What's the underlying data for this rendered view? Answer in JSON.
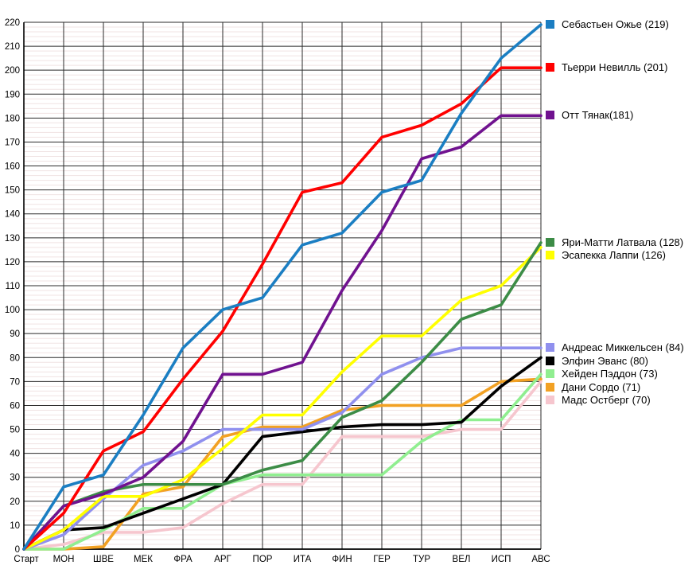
{
  "chart_data": {
    "type": "line",
    "title": "",
    "xlabel": "",
    "ylabel": "",
    "x_labels": [
      "Старт",
      "МОН",
      "ШВЕ",
      "МЕК",
      "ФРА",
      "АРГ",
      "ПОР",
      "ИТА",
      "ФИН",
      "ГЕР",
      "ТУР",
      "ВЕЛ",
      "ИСП",
      "АВС"
    ],
    "ylim": [
      0,
      220
    ],
    "ytick_step": 10,
    "minor_grid_step": 2,
    "grid": "on",
    "legend_position": "right-aligned-to-line-ends",
    "series": [
      {
        "name": "Себастьен Ожье (219)",
        "color": "#1B7EC2",
        "values": [
          0,
          26,
          31,
          56,
          84,
          100,
          105,
          127,
          132,
          149,
          154,
          182,
          205,
          219
        ]
      },
      {
        "name": "Тьерри Невилль (201)",
        "color": "#FF0000",
        "values": [
          0,
          15,
          41,
          49,
          71,
          91,
          119,
          149,
          153,
          172,
          177,
          186,
          201,
          201
        ]
      },
      {
        "name": "Отт Тянак(181)",
        "color": "#70128F",
        "values": [
          0,
          18,
          23,
          30,
          45,
          73,
          73,
          78,
          108,
          133,
          163,
          168,
          181,
          181
        ]
      },
      {
        "name": "Яри-Матти Латвала (128)",
        "color": "#3C8C46",
        "values": [
          0,
          18,
          24,
          27,
          27,
          27,
          33,
          37,
          55,
          62,
          78,
          96,
          102,
          128
        ]
      },
      {
        "name": "Эсапекка Лаппи (126)",
        "color": "#FFFF00",
        "values": [
          0,
          8,
          22,
          22,
          29,
          42,
          56,
          56,
          74,
          89,
          89,
          104,
          110,
          126
        ]
      },
      {
        "name": "Андреас Миккельсен (84)",
        "color": "#9090EE",
        "values": [
          0,
          6,
          21,
          35,
          41,
          50,
          50,
          50,
          57,
          73,
          80,
          84,
          84,
          84
        ]
      },
      {
        "name": "Элфин Эванс (80)",
        "color": "#000000",
        "values": [
          0,
          8,
          9,
          15,
          21,
          27,
          47,
          49,
          51,
          52,
          52,
          53,
          68,
          80
        ]
      },
      {
        "name": "Хейден Пэддон (73)",
        "color": "#90EE90",
        "values": [
          0,
          0,
          8,
          17,
          17,
          27,
          31,
          31,
          31,
          31,
          45,
          54,
          54,
          73
        ]
      },
      {
        "name": "Дани Сордо (71)",
        "color": "#F2A123",
        "values": [
          0,
          0,
          1,
          23,
          26,
          47,
          51,
          51,
          58,
          60,
          60,
          60,
          70,
          71
        ]
      },
      {
        "name": "Мадс Остберг (70)",
        "color": "#F6C6CE",
        "values": [
          0,
          2,
          7,
          7,
          9,
          19,
          27,
          27,
          47,
          47,
          47,
          50,
          50,
          70
        ]
      }
    ],
    "colors": {
      "background": "#FFFFFF",
      "grid_major": "#2B2B2B",
      "grid_minor": "#F0E3E3",
      "axis": "#000000",
      "tick_text": "#000000"
    }
  }
}
